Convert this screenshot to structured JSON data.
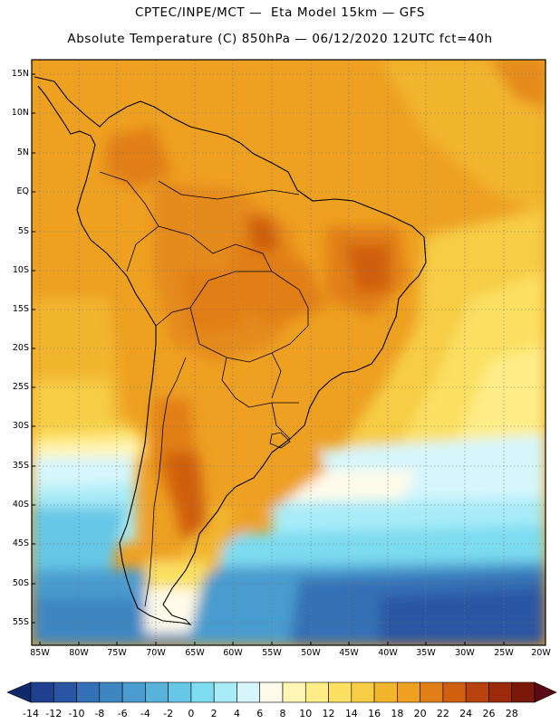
{
  "title_line1": "CPTEC/INPE/MCT —  Eta Model 15km — GFS",
  "title_line2": "Absolute Temperature (C) 850hPa — 06/12/2020 12UTC fct=40h",
  "lat_labels": [
    "15N",
    "10N",
    "5N",
    "EQ",
    "5S",
    "10S",
    "15S",
    "20S",
    "25S",
    "30S",
    "35S",
    "40S",
    "45S",
    "50S",
    "55S"
  ],
  "lon_labels": [
    "85W",
    "80W",
    "75W",
    "70W",
    "65W",
    "60W",
    "55W",
    "50W",
    "45W",
    "40W",
    "35W",
    "30W",
    "25W",
    "20W"
  ],
  "colorbar": {
    "labels": [
      "-14",
      "-12",
      "-10",
      "-8",
      "-6",
      "-4",
      "-2",
      "0",
      "2",
      "4",
      "6",
      "8",
      "10",
      "12",
      "14",
      "16",
      "18",
      "20",
      "22",
      "24",
      "26",
      "28"
    ],
    "colors": [
      "#1f3f8f",
      "#2a55a3",
      "#3470b5",
      "#3e86c2",
      "#4a9ccf",
      "#58b3db",
      "#66c7e6",
      "#7ddcf0",
      "#a8ecf8",
      "#d6f6fc",
      "#fffbea",
      "#fff6b5",
      "#ffed88",
      "#fbe062",
      "#f6cd45",
      "#f2b52d",
      "#eea021",
      "#e17f17",
      "#d05f10",
      "#b8420c",
      "#9b2a0a",
      "#7a190a"
    ]
  }
}
